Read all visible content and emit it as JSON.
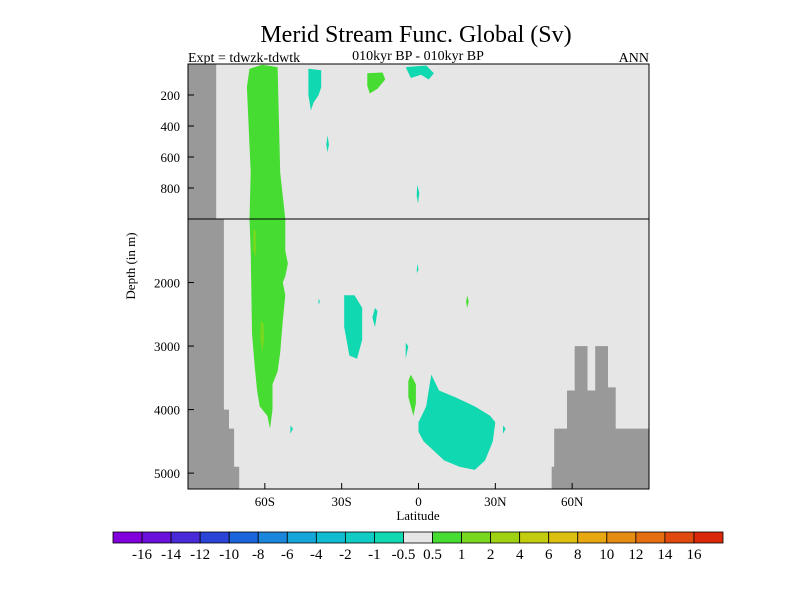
{
  "chart_data": {
    "type": "heatmap",
    "title": "Merid Stream Func. Global (Sv)",
    "subtitle_left": "Expt = tdwzk-tdwtk",
    "subtitle_center": "010kyr BP - 010kyr BP",
    "subtitle_right": "ANN",
    "xlabel": "Latitude",
    "ylabel": "Depth (in m)",
    "xlim": [
      -90,
      90
    ],
    "x_ticks": [
      {
        "value": -60,
        "label": "60S"
      },
      {
        "value": -30,
        "label": "30S"
      },
      {
        "value": 0,
        "label": "0"
      },
      {
        "value": 30,
        "label": "30N"
      },
      {
        "value": 60,
        "label": "60N"
      }
    ],
    "y_upper": {
      "range": [
        0,
        1000
      ],
      "ticks": [
        200,
        400,
        600,
        800
      ],
      "tick_labels": [
        "200",
        "400",
        "600",
        "800"
      ]
    },
    "y_lower": {
      "range": [
        1000,
        5250
      ],
      "ticks": [
        2000,
        3000,
        4000,
        5000
      ],
      "tick_labels": [
        "2000",
        "3000",
        "4000",
        "5000"
      ]
    },
    "background_color": "#e6e6e6",
    "land_color": "#999999",
    "colorbar": {
      "colors": [
        "#8200dc",
        "#6a12dc",
        "#4a2ad8",
        "#2a44d8",
        "#1a64dc",
        "#1a86dc",
        "#14a6d8",
        "#10bcd0",
        "#10ccc4",
        "#10d8b0",
        "#e6e6e6",
        "#46dc32",
        "#78d820",
        "#a0d214",
        "#c4cc10",
        "#dcc010",
        "#e8a812",
        "#e68c12",
        "#e46e10",
        "#e04a0e",
        "#dc280a"
      ],
      "labels": [
        "-16",
        "-14",
        "-12",
        "-10",
        "-8",
        "-6",
        "-4",
        "-2",
        "-1",
        "-0.5",
        "0.5",
        "1",
        "2",
        "4",
        "6",
        "8",
        "10",
        "12",
        "14",
        "16"
      ]
    },
    "regions": [
      {
        "level": 1,
        "color": "#46dc32",
        "points": [
          [
            -66,
            30
          ],
          [
            -61,
            5
          ],
          [
            -55,
            20
          ],
          [
            -54,
            700
          ],
          [
            -52,
            1000
          ],
          [
            -52,
            1500
          ],
          [
            -51,
            1700
          ],
          [
            -52,
            1900
          ],
          [
            -53,
            2000
          ],
          [
            -52,
            2200
          ],
          [
            -53,
            2600
          ],
          [
            -54,
            3100
          ],
          [
            -55,
            3400
          ],
          [
            -57,
            3600
          ],
          [
            -57,
            4000
          ],
          [
            -58,
            4300
          ],
          [
            -59,
            4100
          ],
          [
            -62,
            3950
          ],
          [
            -63,
            3700
          ],
          [
            -64,
            3300
          ],
          [
            -65,
            2800
          ],
          [
            -65.5,
            1500
          ],
          [
            -66,
            1000
          ],
          [
            -65.5,
            700
          ],
          [
            -67,
            150
          ]
        ]
      },
      {
        "level": 2,
        "color": "#78d820",
        "points": [
          [
            -61.5,
            2600
          ],
          [
            -60.5,
            2650
          ],
          [
            -60.3,
            2900
          ],
          [
            -61,
            3100
          ],
          [
            -61.8,
            2850
          ]
        ]
      },
      {
        "level": 2,
        "color": "#78d820",
        "points": [
          [
            -64.5,
            1150
          ],
          [
            -63.5,
            1200
          ],
          [
            -63.5,
            1600
          ],
          [
            -64.5,
            1500
          ]
        ]
      },
      {
        "level": 1,
        "color": "#46dc32",
        "points": [
          [
            -20,
            60
          ],
          [
            -14,
            55
          ],
          [
            -13,
            100
          ],
          [
            -16,
            160
          ],
          [
            -19,
            190
          ],
          [
            -20,
            140
          ]
        ]
      },
      {
        "level": 1,
        "color": "#46dc32",
        "points": [
          [
            -3,
            3450
          ],
          [
            -1,
            3600
          ],
          [
            -1,
            3900
          ],
          [
            -2,
            4100
          ],
          [
            -4,
            3800
          ],
          [
            -4,
            3550
          ]
        ]
      },
      {
        "level": 1,
        "color": "#46dc32",
        "points": [
          [
            19,
            2200
          ],
          [
            19.6,
            2300
          ],
          [
            19,
            2400
          ],
          [
            18.6,
            2300
          ]
        ]
      },
      {
        "level": -0.5,
        "color": "#10d8b0",
        "points": [
          [
            -43,
            30
          ],
          [
            -38,
            40
          ],
          [
            -38,
            150
          ],
          [
            -39,
            200
          ],
          [
            -41,
            250
          ],
          [
            -42,
            300
          ],
          [
            -43,
            200
          ]
        ]
      },
      {
        "level": -0.5,
        "color": "#10d8b0",
        "points": [
          [
            -5,
            20
          ],
          [
            3,
            10
          ],
          [
            6,
            60
          ],
          [
            4,
            100
          ],
          [
            1,
            70
          ],
          [
            -3,
            90
          ]
        ]
      },
      {
        "level": -0.5,
        "color": "#10d8b0",
        "points": [
          [
            -35.5,
            460
          ],
          [
            -35,
            520
          ],
          [
            -35.5,
            570
          ],
          [
            -36,
            520
          ]
        ]
      },
      {
        "level": -0.5,
        "color": "#10d8b0",
        "points": [
          [
            -0.5,
            780
          ],
          [
            0.3,
            830
          ],
          [
            -0.2,
            900
          ],
          [
            -0.7,
            850
          ]
        ]
      },
      {
        "level": -0.5,
        "color": "#10d8b0",
        "points": [
          [
            -0.5,
            1700
          ],
          [
            0,
            1800
          ],
          [
            -0.7,
            1850
          ]
        ]
      },
      {
        "level": -0.5,
        "color": "#10d8b0",
        "points": [
          [
            -39,
            2250
          ],
          [
            -38.5,
            2300
          ],
          [
            -39,
            2350
          ]
        ]
      },
      {
        "level": -0.5,
        "color": "#10d8b0",
        "points": [
          [
            -29,
            2200
          ],
          [
            -25,
            2200
          ],
          [
            -22,
            2400
          ],
          [
            -22,
            2900
          ],
          [
            -24,
            3200
          ],
          [
            -27,
            3150
          ],
          [
            -29,
            2700
          ]
        ]
      },
      {
        "level": -0.5,
        "color": "#10d8b0",
        "points": [
          [
            -17,
            2400
          ],
          [
            -16,
            2450
          ],
          [
            -17,
            2700
          ],
          [
            -18,
            2550
          ]
        ]
      },
      {
        "level": -0.5,
        "color": "#10d8b0",
        "points": [
          [
            -5,
            2950
          ],
          [
            -4,
            3000
          ],
          [
            -5,
            3200
          ]
        ]
      },
      {
        "level": -0.5,
        "color": "#10d8b0",
        "points": [
          [
            5,
            3450
          ],
          [
            8,
            3700
          ],
          [
            14,
            3800
          ],
          [
            22,
            3950
          ],
          [
            28,
            4100
          ],
          [
            30,
            4200
          ],
          [
            29,
            4500
          ],
          [
            26,
            4800
          ],
          [
            22,
            4950
          ],
          [
            16,
            4900
          ],
          [
            10,
            4800
          ],
          [
            6,
            4650
          ],
          [
            2,
            4500
          ],
          [
            0,
            4350
          ],
          [
            0,
            4200
          ],
          [
            3,
            3950
          ],
          [
            4,
            3700
          ]
        ]
      },
      {
        "level": -0.5,
        "color": "#10d8b0",
        "points": [
          [
            -50,
            4250
          ],
          [
            -49,
            4300
          ],
          [
            -50,
            4380
          ]
        ]
      },
      {
        "level": -0.5,
        "color": "#10d8b0",
        "points": [
          [
            33,
            4250
          ],
          [
            34,
            4300
          ],
          [
            33,
            4380
          ]
        ]
      }
    ],
    "land": [
      {
        "points": [
          [
            -90,
            0
          ],
          [
            -90,
            5250
          ],
          [
            -70,
            5250
          ],
          [
            -70,
            4900
          ],
          [
            -72,
            4900
          ],
          [
            -72,
            4300
          ],
          [
            -74,
            4300
          ],
          [
            -74,
            4000
          ],
          [
            -76,
            4000
          ],
          [
            -76,
            1000
          ],
          [
            -79,
            1000
          ],
          [
            -79,
            0
          ]
        ]
      },
      {
        "points": [
          [
            52,
            5250
          ],
          [
            52,
            4900
          ],
          [
            53,
            4900
          ],
          [
            53,
            4300
          ],
          [
            58,
            4300
          ],
          [
            58,
            3700
          ],
          [
            61,
            3700
          ],
          [
            61,
            3000
          ],
          [
            66,
            3000
          ],
          [
            66,
            3700
          ],
          [
            69,
            3700
          ],
          [
            69,
            3000
          ],
          [
            74,
            3000
          ],
          [
            74,
            3650
          ],
          [
            77,
            3650
          ],
          [
            77,
            4300
          ],
          [
            90,
            4300
          ],
          [
            90,
            5250
          ]
        ]
      }
    ]
  }
}
